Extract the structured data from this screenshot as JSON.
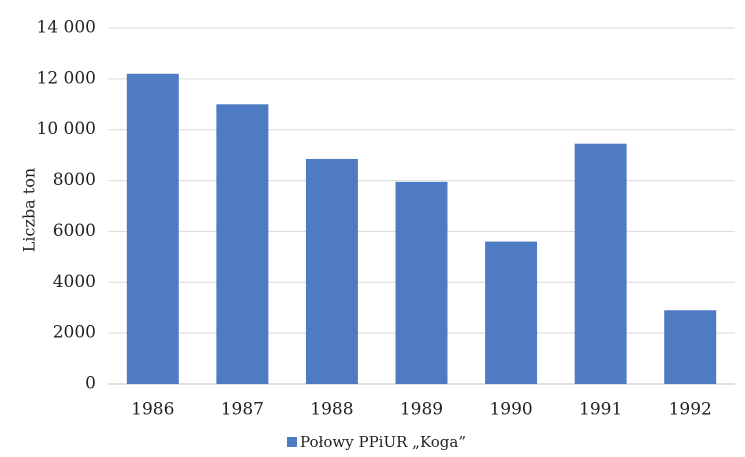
{
  "chart_data": {
    "type": "bar",
    "categories": [
      "1986",
      "1987",
      "1988",
      "1989",
      "1990",
      "1991",
      "1992"
    ],
    "series": [
      {
        "name": "Połowy PPiUR „Koga”",
        "values": [
          12200,
          11000,
          8850,
          7950,
          5600,
          9450,
          2900
        ],
        "color": "#4f7bc2"
      }
    ],
    "ylabel": "Liczba ton",
    "ylim": [
      0,
      14000
    ],
    "yticks": [
      0,
      2000,
      4000,
      6000,
      8000,
      10000,
      12000,
      14000
    ],
    "ytick_labels": [
      "0",
      "2000",
      "4000",
      "6000",
      "8000",
      "10 000",
      "12 000",
      "14 000"
    ],
    "grid": true,
    "gridline_color": "#d9d9d9",
    "legend_position": "bottom"
  }
}
